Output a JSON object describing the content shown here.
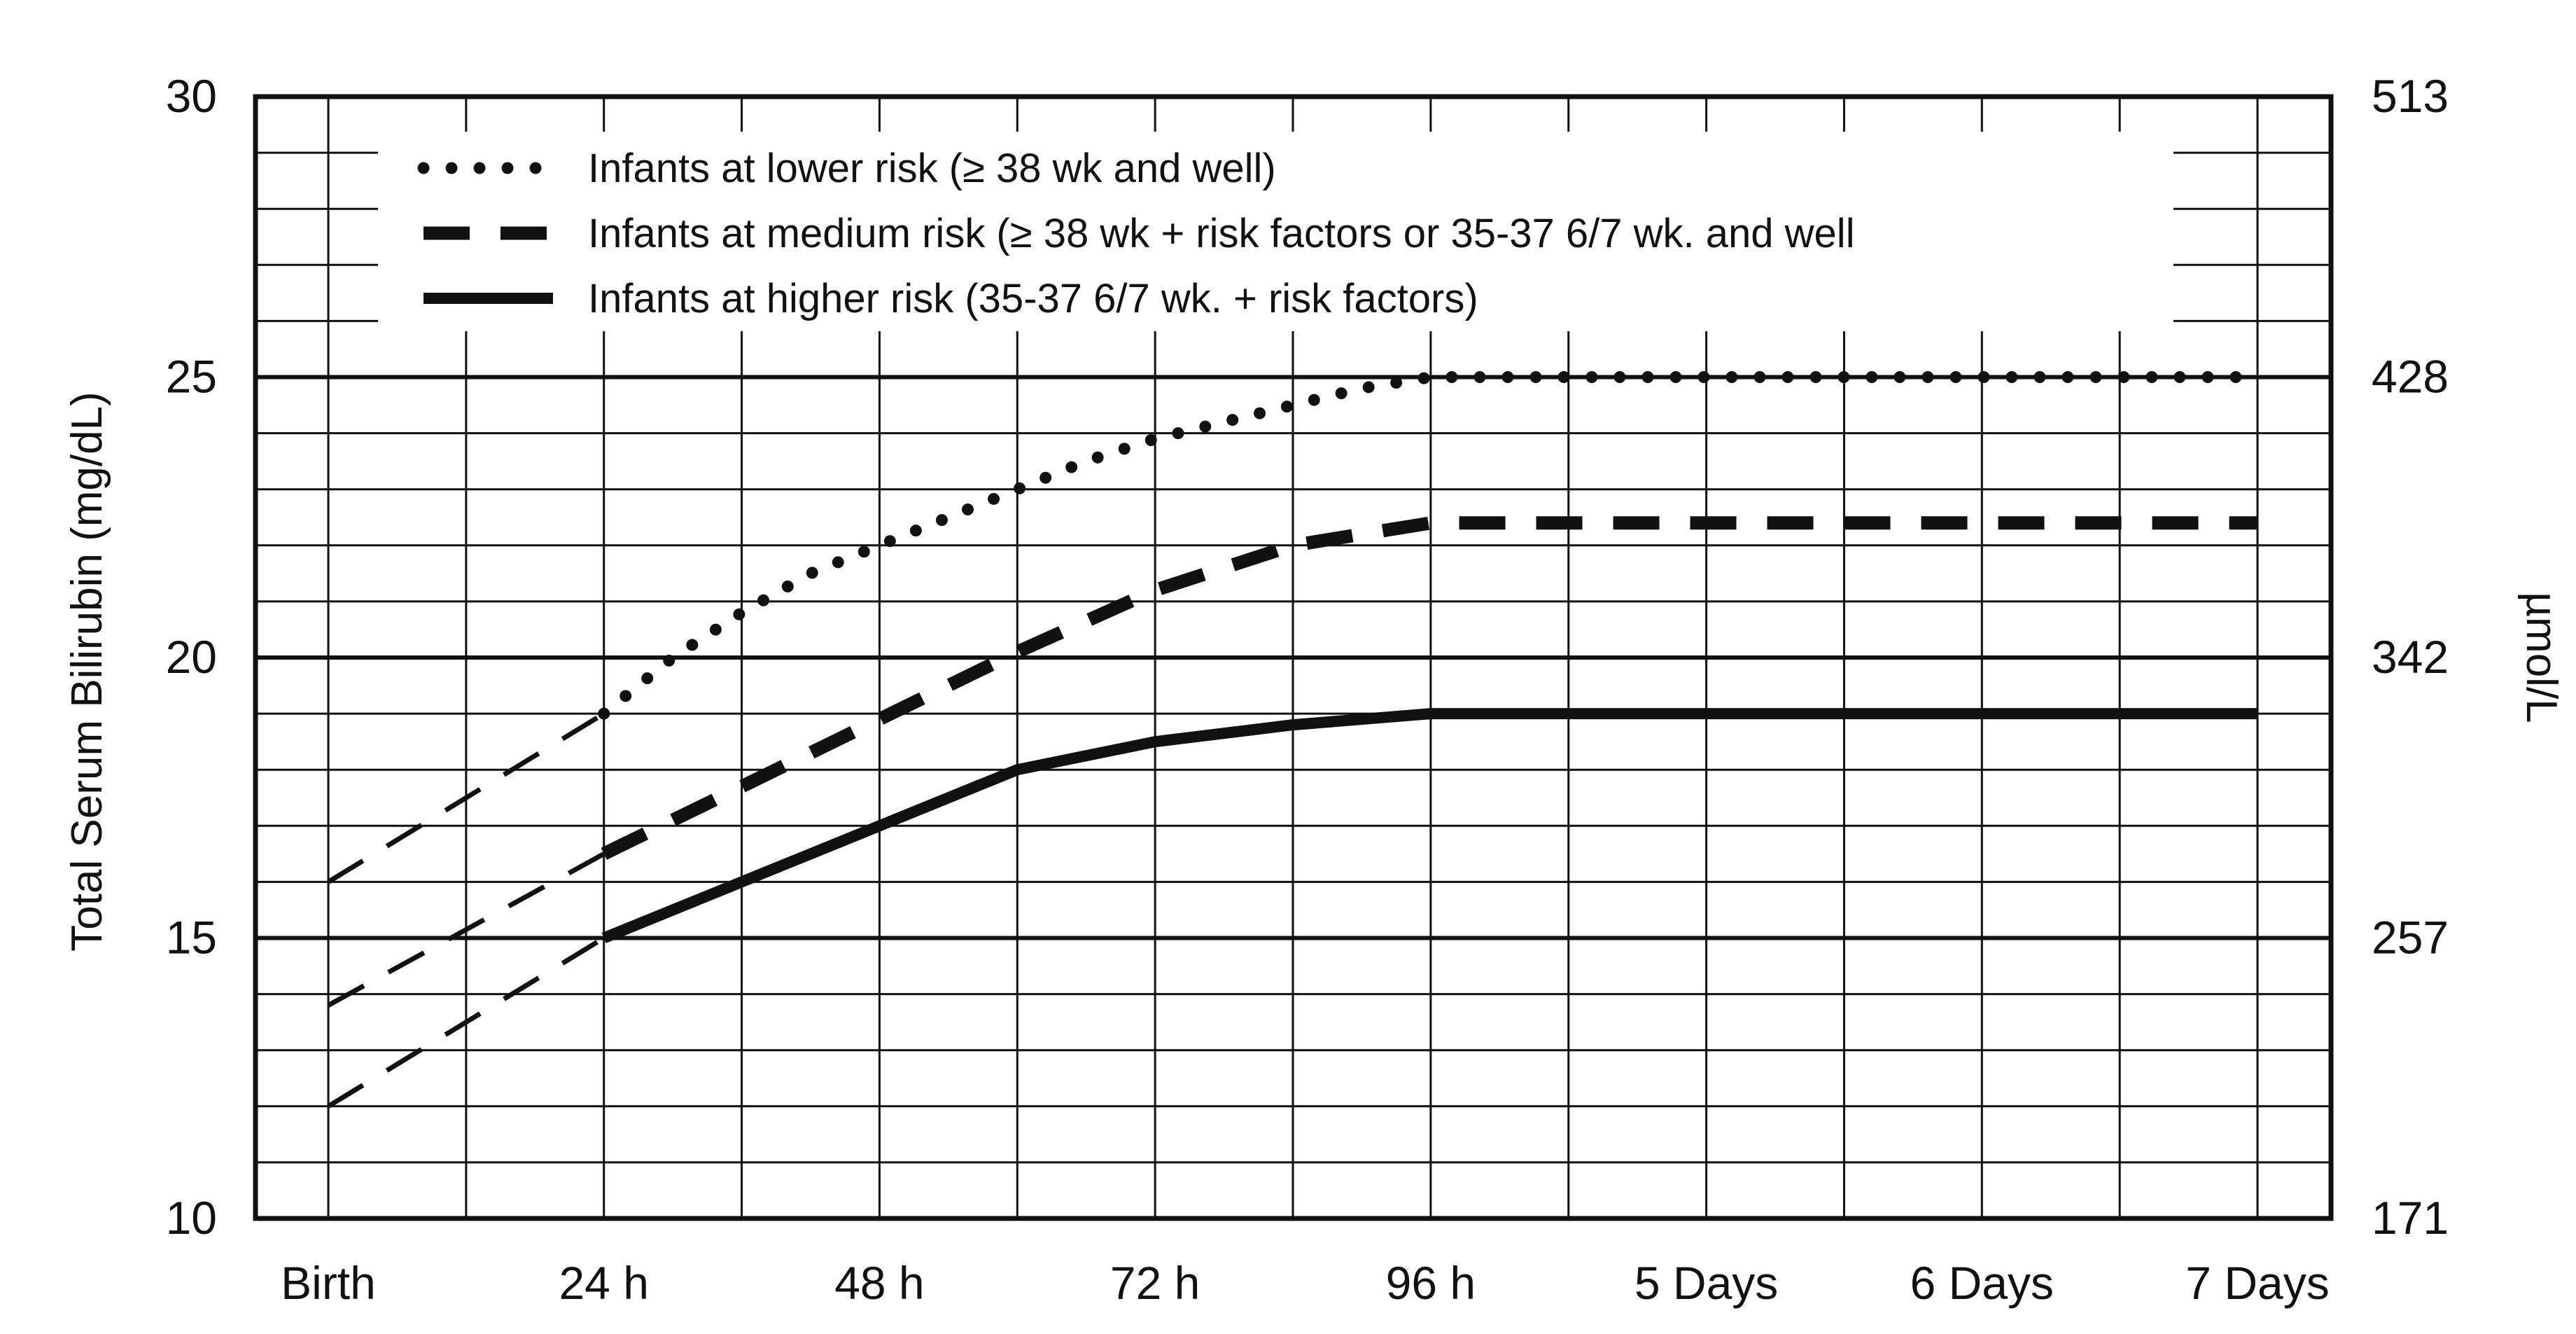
{
  "chart_data": {
    "type": "line",
    "title": "",
    "xlabel": "",
    "ylabel": "Total Serum Bilirubin (mg/dL)",
    "y2label": "µmol/L",
    "x_unit": "hours",
    "categories": [
      "Birth",
      "24 h",
      "48 h",
      "72 h",
      "96 h",
      "5 Days",
      "6 Days",
      "7 Days"
    ],
    "x_ticks_hours": [
      0,
      24,
      48,
      72,
      96,
      120,
      144,
      168
    ],
    "ylim": [
      10,
      30
    ],
    "y_ticks": [
      10,
      15,
      20,
      25,
      30
    ],
    "y2_ticks": [
      171,
      257,
      342,
      428,
      513
    ],
    "grid": true,
    "legend_position": "top",
    "series": [
      {
        "name": "Infants at lower risk (≥ 38 wk and well)",
        "style": "dotted",
        "color": "#111111",
        "x": [
          24,
          30,
          36,
          42,
          48,
          54,
          60,
          66,
          72,
          78,
          84,
          90,
          96,
          108,
          120,
          132,
          144,
          156,
          168
        ],
        "y": [
          19.0,
          20.0,
          20.8,
          21.5,
          22.0,
          22.5,
          23.0,
          23.5,
          23.9,
          24.2,
          24.5,
          24.8,
          25.0,
          25.0,
          25.0,
          25.0,
          25.0,
          25.0,
          25.0
        ]
      },
      {
        "name": "Infants at medium risk (≥ 38 wk + risk factors or 35-37 6/7 wk. and well",
        "style": "dashed",
        "color": "#111111",
        "x": [
          24,
          36,
          48,
          60,
          72,
          84,
          96,
          108,
          120,
          132,
          144,
          156,
          168
        ],
        "y": [
          16.5,
          17.7,
          18.9,
          20.1,
          21.2,
          22.0,
          22.4,
          22.4,
          22.4,
          22.4,
          22.4,
          22.4,
          22.4
        ]
      },
      {
        "name": "Infants at higher risk (35-37 6/7 wk. + risk factors)",
        "style": "solid",
        "color": "#111111",
        "x": [
          24,
          36,
          48,
          60,
          72,
          84,
          96,
          108,
          120,
          132,
          144,
          156,
          168
        ],
        "y": [
          15.0,
          16.0,
          17.0,
          18.0,
          18.5,
          18.8,
          19.0,
          19.0,
          19.0,
          19.0,
          19.0,
          19.0,
          19.0
        ]
      }
    ],
    "extrapolated_segments": [
      {
        "x": [
          0,
          24
        ],
        "y": [
          16.0,
          19.0
        ]
      },
      {
        "x": [
          0,
          24
        ],
        "y": [
          13.8,
          16.5
        ]
      },
      {
        "x": [
          0,
          24
        ],
        "y": [
          12.0,
          15.0
        ]
      }
    ]
  }
}
